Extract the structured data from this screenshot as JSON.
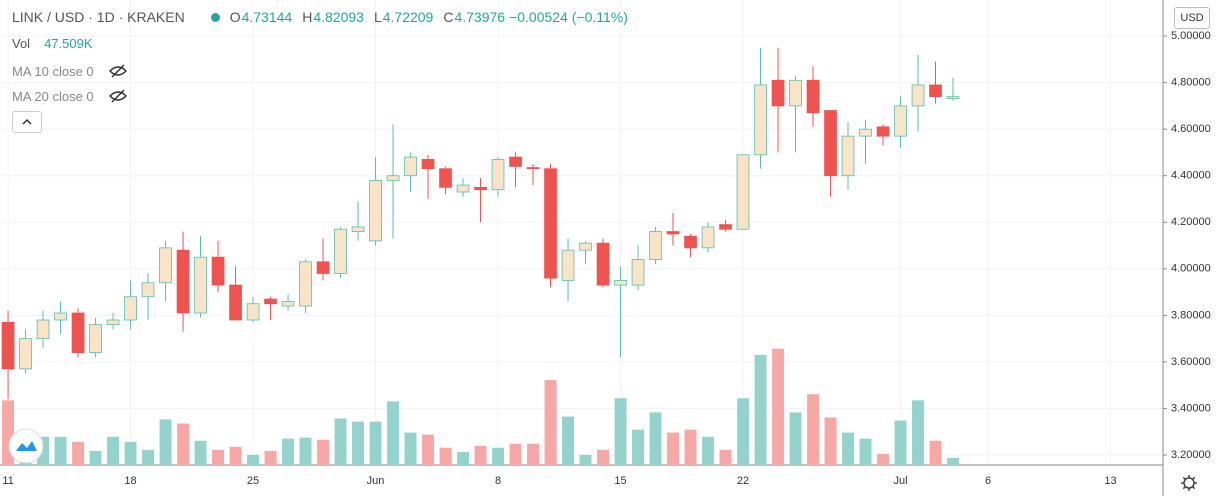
{
  "chart_data": {
    "type": "candlestick",
    "title": "LINK / USD · 1D · KRAKEN",
    "currency": "USD",
    "legend": {
      "open": "O",
      "high": "H",
      "low": "L",
      "close": "C",
      "change": "−0.00524 (−0.11%)",
      "volume_name": "Vol",
      "volume_label": "47.509K"
    },
    "indicators": [
      "MA 10 close 0",
      "MA 20 close 0"
    ],
    "open": [
      3.77,
      3.57,
      3.7,
      3.78,
      3.81,
      3.64,
      3.76,
      3.78,
      3.88,
      3.94,
      4.08,
      3.81,
      4.05,
      3.93,
      3.78,
      3.87,
      3.84,
      3.84,
      4.03,
      3.98,
      4.16,
      4.12,
      4.38,
      4.4,
      4.47,
      4.43,
      4.33,
      4.35,
      4.34,
      4.48,
      4.435,
      4.43,
      3.95,
      4.08,
      4.11,
      3.93,
      3.93,
      4.04,
      4.16,
      4.14,
      4.09,
      4.19,
      4.17,
      4.49,
      4.81,
      4.7,
      4.81,
      4.68,
      4.4,
      4.57,
      4.61,
      4.57,
      4.7,
      4.79,
      4.73144
    ],
    "high": [
      3.82,
      3.74,
      3.82,
      3.86,
      3.83,
      3.79,
      3.81,
      3.95,
      3.98,
      4.12,
      4.16,
      4.14,
      4.12,
      4.01,
      3.88,
      3.88,
      3.89,
      4.04,
      4.13,
      4.18,
      4.29,
      4.48,
      4.62,
      4.5,
      4.49,
      4.44,
      4.39,
      4.39,
      4.48,
      4.5,
      4.45,
      4.45,
      4.13,
      4.12,
      4.13,
      4.01,
      4.1,
      4.18,
      4.24,
      4.15,
      4.2,
      4.21,
      4.49,
      4.95,
      4.95,
      4.83,
      4.87,
      4.68,
      4.63,
      4.64,
      4.62,
      4.74,
      4.92,
      4.89,
      4.82093
    ],
    "low": [
      3.44,
      3.55,
      3.66,
      3.72,
      3.62,
      3.62,
      3.74,
      3.74,
      3.78,
      3.86,
      3.73,
      3.79,
      3.9,
      3.78,
      3.77,
      3.78,
      3.82,
      3.81,
      3.95,
      3.96,
      4.12,
      4.1,
      4.13,
      4.33,
      4.3,
      4.32,
      4.31,
      4.2,
      4.31,
      4.35,
      4.36,
      3.92,
      3.86,
      4.02,
      3.92,
      3.62,
      3.91,
      4.02,
      4.1,
      4.05,
      4.07,
      4.16,
      4.17,
      4.43,
      4.5,
      4.5,
      4.61,
      4.31,
      4.34,
      4.45,
      4.53,
      4.52,
      4.59,
      4.71,
      4.72209
    ],
    "close": [
      3.57,
      3.7,
      3.78,
      3.81,
      3.64,
      3.76,
      3.78,
      3.88,
      3.94,
      4.09,
      3.81,
      4.05,
      3.93,
      3.78,
      3.85,
      3.85,
      3.86,
      4.03,
      3.98,
      4.17,
      4.18,
      4.38,
      4.4,
      4.48,
      4.43,
      4.35,
      4.36,
      4.34,
      4.47,
      4.44,
      4.43,
      3.96,
      4.08,
      4.11,
      3.93,
      3.95,
      4.04,
      4.16,
      4.15,
      4.09,
      4.18,
      4.17,
      4.49,
      4.79,
      4.7,
      4.81,
      4.67,
      4.4,
      4.57,
      4.6,
      4.57,
      4.7,
      4.79,
      4.74,
      4.73976
    ],
    "volume": [
      435,
      204,
      190,
      190,
      156,
      95,
      190,
      156,
      102,
      306,
      279,
      163,
      102,
      122,
      68,
      95,
      177,
      184,
      170,
      313,
      292,
      292,
      428,
      218,
      204,
      116,
      88,
      129,
      116,
      143,
      143,
      571,
      326,
      68,
      102,
      449,
      238,
      354,
      218,
      238,
      190,
      102,
      449,
      741,
      782,
      354,
      476,
      320,
      218,
      177,
      75,
      299,
      435,
      163,
      47.509
    ],
    "colors": {
      "up_body": "#f9e4c8",
      "up_line": "#5dbcb1",
      "down": "#ef5350",
      "up_volume": "#93d3cc",
      "down_volume": "#f7a8a6",
      "legend_value": "#26a69a"
    },
    "ylim": [
      3.157,
      5.155
    ],
    "yticks": [
      {
        "value": 3.2,
        "label": "3.20000"
      },
      {
        "value": 3.4,
        "label": "3.40000"
      },
      {
        "value": 3.6,
        "label": "3.60000"
      },
      {
        "value": 3.8,
        "label": "3.80000"
      },
      {
        "value": 4.0,
        "label": "4.00000"
      },
      {
        "value": 4.2,
        "label": "4.20000"
      },
      {
        "value": 4.4,
        "label": "4.40000"
      },
      {
        "value": 4.6,
        "label": "4.60000"
      },
      {
        "value": 4.8,
        "label": "4.80000"
      },
      {
        "value": 5.0,
        "label": "5.00000"
      }
    ],
    "xlim": [
      -0.46,
      66
    ],
    "xticks": [
      {
        "value": 0,
        "label": "11"
      },
      {
        "value": 7,
        "label": "18"
      },
      {
        "value": 14,
        "label": "25"
      },
      {
        "value": 21,
        "label": "Jun"
      },
      {
        "value": 28,
        "label": "8"
      },
      {
        "value": 35,
        "label": "15"
      },
      {
        "value": 42,
        "label": "22"
      },
      {
        "value": 51,
        "label": "Jul"
      },
      {
        "value": 56,
        "label": "6"
      },
      {
        "value": 63,
        "label": "13"
      }
    ],
    "grid": true
  }
}
